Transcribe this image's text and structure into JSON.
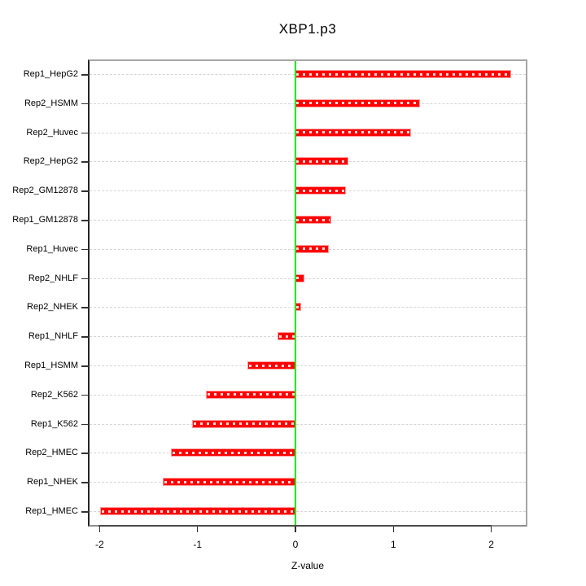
{
  "title": "XBP1.p3",
  "chart_data": {
    "type": "bar",
    "orientation": "horizontal",
    "title": "XBP1.p3",
    "xlabel": "Z-value",
    "categories": [
      "Rep1_HepG2",
      "Rep2_HSMM",
      "Rep2_Huvec",
      "Rep2_HepG2",
      "Rep2_GM12878",
      "Rep1_GM12878",
      "Rep1_Huvec",
      "Rep2_NHLF",
      "Rep2_NHEK",
      "Rep1_NHLF",
      "Rep1_HSMM",
      "Rep2_K562",
      "Rep1_K562",
      "Rep2_HMEC",
      "Rep1_NHEK",
      "Rep1_HMEC"
    ],
    "values": [
      2.21,
      1.28,
      1.19,
      0.55,
      0.52,
      0.37,
      0.35,
      0.1,
      0.07,
      -0.19,
      -0.5,
      -0.92,
      -1.06,
      -1.28,
      -1.36,
      -2.0
    ],
    "x_ticks": [
      "-2",
      "-1",
      "0",
      "1",
      "2"
    ],
    "x_tick_values": [
      -2,
      -1,
      0,
      1,
      2
    ],
    "xlim": [
      -2.11,
      2.37
    ],
    "grid": "horizontal dashed, one line per bar",
    "legend": "none",
    "colors": {
      "bar_fill": "#ff0000",
      "bar_edge": "#ff9a9a",
      "zero_line": "#00ee00",
      "grid_line": "#d6d6d6",
      "box_gray": "#a6a6a6",
      "axis_dark": "#4a4a4a",
      "text": "#000000"
    }
  }
}
